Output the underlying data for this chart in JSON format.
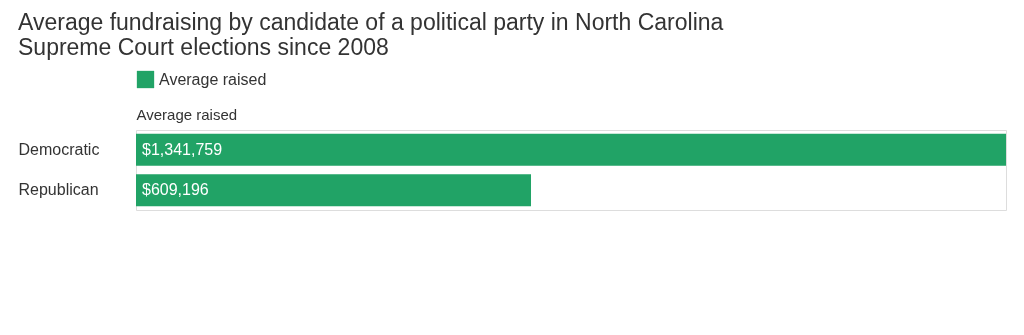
{
  "chart_data": {
    "type": "bar",
    "orientation": "horizontal",
    "title": "Average fundraising by candidate of a political party in North Carolina\nSupreme Court elections since 2008",
    "xlabel": "Average raised",
    "categories": [
      "Democratic",
      "Republican"
    ],
    "series": [
      {
        "name": "Average raised",
        "color": "#21a366",
        "values": [
          1341759,
          609196
        ],
        "value_labels": [
          "$1,341,759",
          "$609,196"
        ]
      }
    ],
    "legend": "top left",
    "tick_labels": "y",
    "grid": false
  }
}
